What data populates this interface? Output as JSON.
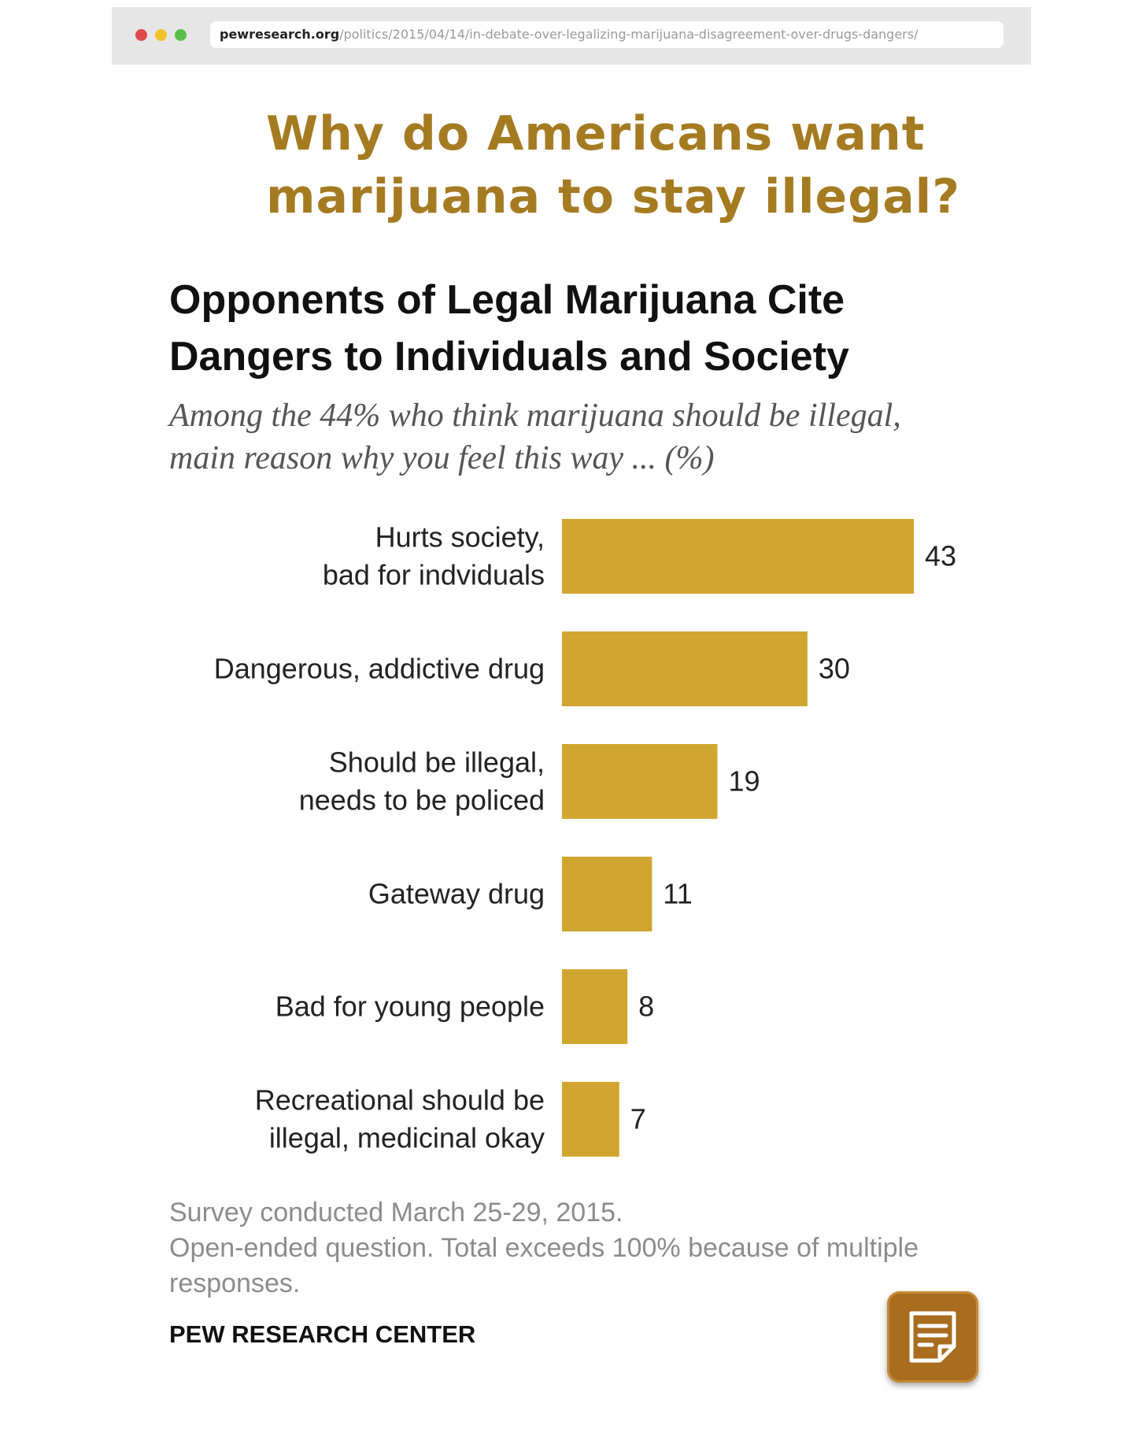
{
  "browser": {
    "url_domain": "pewresearch.org",
    "url_path": "/politics/2015/04/14/in-debate-over-legalizing-marijuana-disagreement-over-drugs-dangers/",
    "dot_colors": [
      "#e0484c",
      "#f2c12c",
      "#58c04a"
    ]
  },
  "headline": "Why do Americans want\nmarijuana to stay illegal?",
  "chart_data": {
    "type": "bar",
    "orientation": "horizontal",
    "title": "Opponents of Legal Marijuana Cite\nDangers to Individuals and Society",
    "subtitle": "Among the 44% who think marijuana should be illegal,\nmain reason why you feel this way ... (%)",
    "categories": [
      [
        "Hurts society,",
        "bad for indviduals"
      ],
      [
        "Dangerous, addictive drug"
      ],
      [
        "Should be illegal,",
        "needs to be policed"
      ],
      [
        "Gateway drug"
      ],
      [
        "Bad for young people"
      ],
      [
        "Recreational should be",
        "illegal, medicinal okay"
      ]
    ],
    "values": [
      43,
      30,
      19,
      11,
      8,
      7
    ],
    "bar_color": "#d0a630",
    "xlim": [
      0,
      43
    ]
  },
  "notes": [
    "Survey conducted March 25-29, 2015.",
    "Open-ended question. Total exceeds 100% because of multiple responses."
  ],
  "source": "PEW RESEARCH CENTER",
  "notes_button": {
    "icon": "notes-icon",
    "color": "#a86d1f"
  }
}
